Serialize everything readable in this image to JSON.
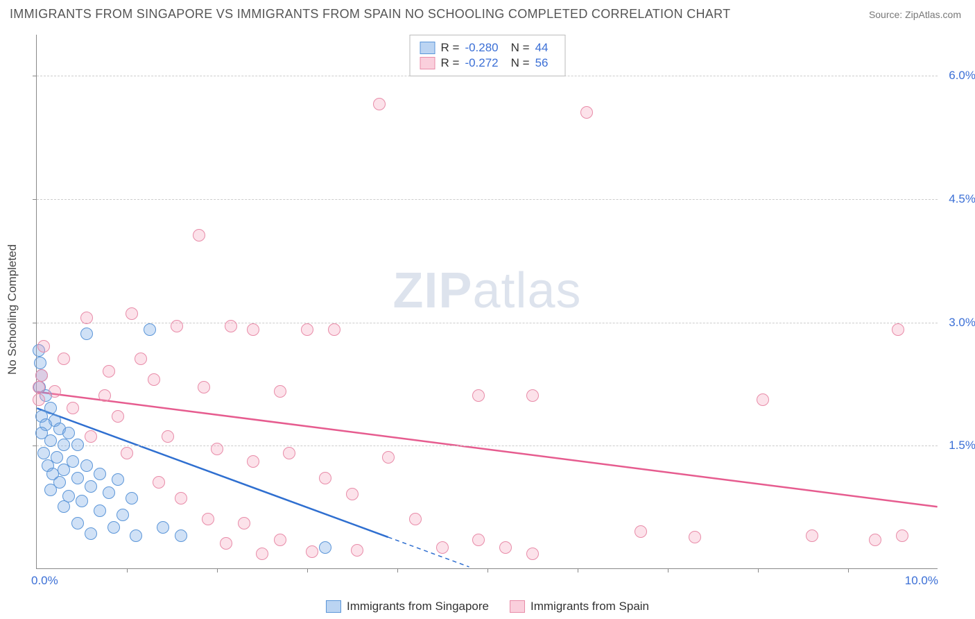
{
  "title": "IMMIGRANTS FROM SINGAPORE VS IMMIGRANTS FROM SPAIN NO SCHOOLING COMPLETED CORRELATION CHART",
  "source": "Source: ZipAtlas.com",
  "watermark_text": "ZIPatlas",
  "ylabel": "No Schooling Completed",
  "chart": {
    "type": "scatter",
    "xlim": [
      0,
      10
    ],
    "ylim": [
      0,
      6.5
    ],
    "xtick_labels": [
      "0.0%",
      "10.0%"
    ],
    "xtick_values": [
      0,
      10
    ],
    "ytick_labels": [
      "1.5%",
      "3.0%",
      "4.5%",
      "6.0%"
    ],
    "ytick_values": [
      1.5,
      3.0,
      4.5,
      6.0
    ],
    "xtick_minor": [
      1,
      2,
      3,
      4,
      5,
      6,
      7,
      8,
      9
    ],
    "grid_color": "#cccccc",
    "background_color": "#ffffff",
    "marker_radius": 9,
    "series": [
      {
        "name": "Immigrants from Singapore",
        "color_fill": "rgba(120,170,230,0.35)",
        "color_stroke": "#5a95d8",
        "trend_color": "#2f6fd0",
        "trend_width": 2.5,
        "R": "-0.280",
        "N": "44",
        "trend": {
          "x1": 0,
          "y1": 1.95,
          "x2": 3.9,
          "y2": 0.38,
          "dash_to_x": 4.8
        },
        "points": [
          [
            0.02,
            2.65
          ],
          [
            0.04,
            2.5
          ],
          [
            0.05,
            2.35
          ],
          [
            0.03,
            2.2
          ],
          [
            0.1,
            2.1
          ],
          [
            0.15,
            1.95
          ],
          [
            0.05,
            1.85
          ],
          [
            0.2,
            1.8
          ],
          [
            0.1,
            1.75
          ],
          [
            0.25,
            1.7
          ],
          [
            0.05,
            1.65
          ],
          [
            0.35,
            1.65
          ],
          [
            0.15,
            1.55
          ],
          [
            0.3,
            1.5
          ],
          [
            0.45,
            1.5
          ],
          [
            0.08,
            1.4
          ],
          [
            0.22,
            1.35
          ],
          [
            0.4,
            1.3
          ],
          [
            0.12,
            1.25
          ],
          [
            0.55,
            1.25
          ],
          [
            0.3,
            1.2
          ],
          [
            0.18,
            1.15
          ],
          [
            0.7,
            1.15
          ],
          [
            0.45,
            1.1
          ],
          [
            0.25,
            1.05
          ],
          [
            0.9,
            1.08
          ],
          [
            0.6,
            1.0
          ],
          [
            0.15,
            0.95
          ],
          [
            0.8,
            0.92
          ],
          [
            0.35,
            0.88
          ],
          [
            0.5,
            0.82
          ],
          [
            1.05,
            0.85
          ],
          [
            0.3,
            0.75
          ],
          [
            0.7,
            0.7
          ],
          [
            0.95,
            0.65
          ],
          [
            1.25,
            2.9
          ],
          [
            0.45,
            0.55
          ],
          [
            0.85,
            0.5
          ],
          [
            1.4,
            0.5
          ],
          [
            0.6,
            0.42
          ],
          [
            1.1,
            0.4
          ],
          [
            1.6,
            0.4
          ],
          [
            0.55,
            2.85
          ],
          [
            3.2,
            0.25
          ]
        ]
      },
      {
        "name": "Immigrants from Spain",
        "color_fill": "rgba(245,160,185,0.30)",
        "color_stroke": "#e88ba8",
        "trend_color": "#e65c8f",
        "trend_width": 2.5,
        "R": "-0.272",
        "N": "56",
        "trend": {
          "x1": 0,
          "y1": 2.15,
          "x2": 10,
          "y2": 0.75
        },
        "points": [
          [
            0.08,
            2.7
          ],
          [
            0.3,
            2.55
          ],
          [
            0.55,
            3.05
          ],
          [
            0.8,
            2.4
          ],
          [
            1.05,
            3.1
          ],
          [
            1.3,
            2.3
          ],
          [
            1.55,
            2.95
          ],
          [
            1.8,
            4.05
          ],
          [
            1.85,
            2.2
          ],
          [
            2.15,
            2.95
          ],
          [
            2.4,
            2.9
          ],
          [
            2.7,
            2.15
          ],
          [
            3.0,
            2.9
          ],
          [
            3.3,
            2.9
          ],
          [
            3.8,
            5.65
          ],
          [
            2.0,
            1.45
          ],
          [
            2.4,
            1.3
          ],
          [
            2.8,
            1.4
          ],
          [
            3.2,
            1.1
          ],
          [
            3.5,
            0.9
          ],
          [
            3.9,
            1.35
          ],
          [
            4.2,
            0.6
          ],
          [
            4.5,
            0.25
          ],
          [
            4.9,
            0.35
          ],
          [
            5.2,
            0.25
          ],
          [
            5.5,
            0.18
          ],
          [
            5.5,
            2.1
          ],
          [
            6.1,
            5.55
          ],
          [
            4.9,
            2.1
          ],
          [
            0.4,
            1.95
          ],
          [
            0.9,
            1.85
          ],
          [
            0.6,
            1.6
          ],
          [
            1.0,
            1.4
          ],
          [
            1.35,
            1.05
          ],
          [
            1.6,
            0.85
          ],
          [
            1.9,
            0.6
          ],
          [
            2.3,
            0.55
          ],
          [
            2.7,
            0.35
          ],
          [
            2.5,
            0.18
          ],
          [
            3.05,
            0.2
          ],
          [
            0.2,
            2.15
          ],
          [
            0.75,
            2.1
          ],
          [
            6.7,
            0.45
          ],
          [
            7.3,
            0.38
          ],
          [
            8.05,
            2.05
          ],
          [
            8.6,
            0.4
          ],
          [
            9.3,
            0.35
          ],
          [
            9.55,
            2.9
          ],
          [
            9.6,
            0.4
          ],
          [
            1.15,
            2.55
          ],
          [
            1.45,
            1.6
          ],
          [
            2.1,
            0.3
          ],
          [
            0.05,
            2.35
          ],
          [
            0.02,
            2.2
          ],
          [
            0.02,
            2.05
          ],
          [
            3.55,
            0.22
          ]
        ]
      }
    ]
  },
  "legend": {
    "items": [
      {
        "label": "Immigrants from Singapore",
        "swatch_class": "sw-blue"
      },
      {
        "label": "Immigrants from Spain",
        "swatch_class": "sw-pink"
      }
    ]
  }
}
